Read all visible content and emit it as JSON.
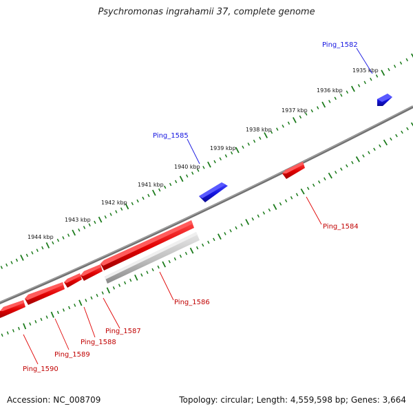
{
  "title": "Psychromonas ingrahamii 37, complete genome",
  "footer": {
    "accession": "Accession: NC_008709",
    "summary": "Topology: circular; Length: 4,559,598 bp; Genes: 3,664"
  },
  "ticks": [
    {
      "label": "1935 kbp"
    },
    {
      "label": "1936 kbp"
    },
    {
      "label": "1937 kbp"
    },
    {
      "label": "1938 kbp"
    },
    {
      "label": "1939 kbp"
    },
    {
      "label": "1940 kbp"
    },
    {
      "label": "1941 kbp"
    },
    {
      "label": "1942 kbp"
    },
    {
      "label": "1943 kbp"
    },
    {
      "label": "1944 kbp"
    }
  ],
  "genes": [
    {
      "name": "Ping_1582",
      "strand": "forward"
    },
    {
      "name": "Ping_1584",
      "strand": "reverse"
    },
    {
      "name": "Ping_1585",
      "strand": "forward"
    },
    {
      "name": "Ping_1586",
      "strand": "reverse"
    },
    {
      "name": "Ping_1587",
      "strand": "reverse"
    },
    {
      "name": "Ping_1588",
      "strand": "reverse"
    },
    {
      "name": "Ping_1589",
      "strand": "reverse"
    },
    {
      "name": "Ping_1590",
      "strand": "reverse"
    }
  ],
  "colors": {
    "forward": "#1414e0",
    "reverse": "#e00000",
    "pseudo": "#b4b4b4",
    "backbone": "#808080",
    "tick": "#1a7a1a"
  }
}
